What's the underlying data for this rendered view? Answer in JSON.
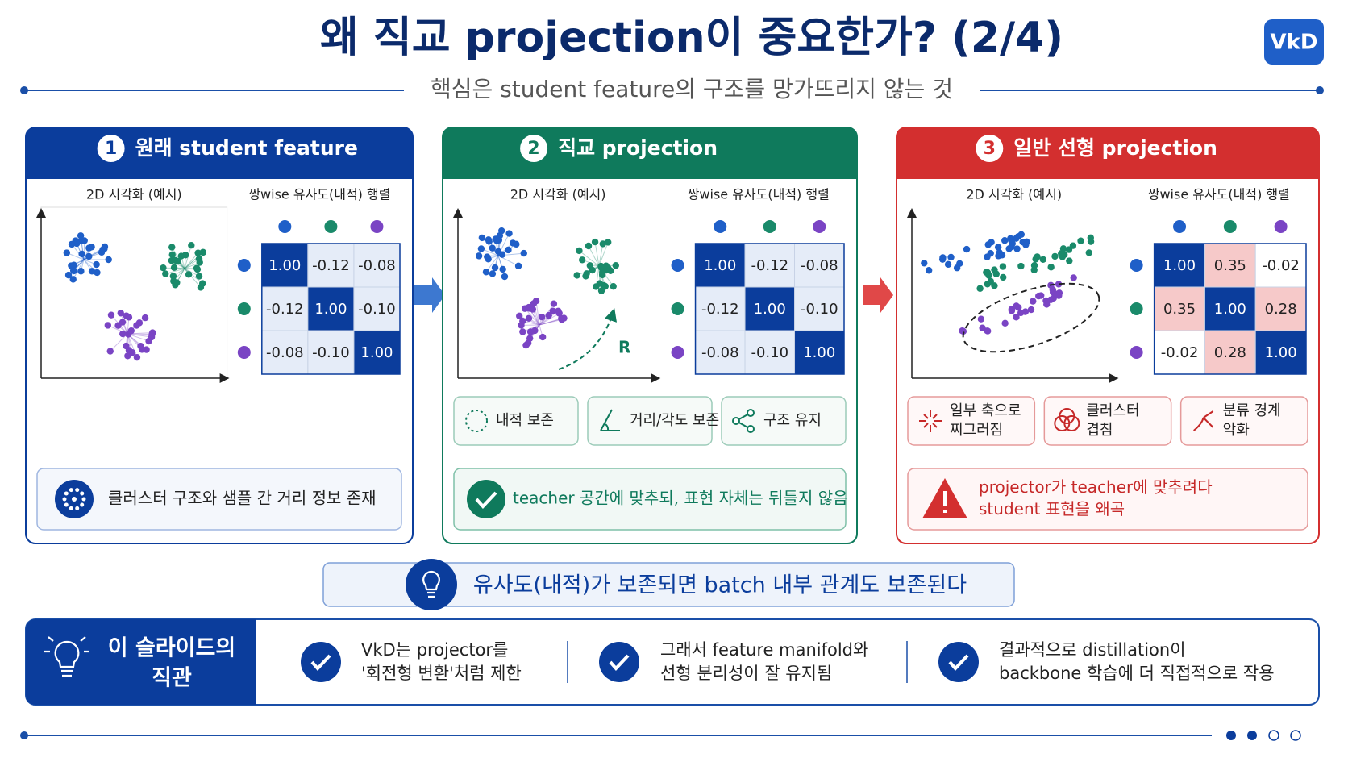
{
  "header": {
    "title": "왜 직교 projection이 중요한가? (2/4)",
    "badge": "VkD",
    "subtitle": "핵심은 student feature의 구조를 망가뜨리지 않는 것"
  },
  "panels": [
    {
      "number": "1",
      "title": "원래 student feature",
      "plot_label": "2D 시각화 (예시)",
      "matrix_label": "쌍wise 유사도(내적) 행렬",
      "matrix": [
        [
          "1.00",
          "-0.12",
          "-0.08"
        ],
        [
          "-0.12",
          "1.00",
          "-0.10"
        ],
        [
          "-0.08",
          "-0.10",
          "1.00"
        ]
      ],
      "note": [
        "클러스터 구조와 샘플 간 거리 정보 존재"
      ]
    },
    {
      "number": "2",
      "title": "직교 projection",
      "plot_label": "2D 시각화 (예시)",
      "matrix_label": "쌍wise 유사도(내적) 행렬",
      "rotation_label": "R",
      "matrix": [
        [
          "1.00",
          "-0.12",
          "-0.08"
        ],
        [
          "-0.12",
          "1.00",
          "-0.10"
        ],
        [
          "-0.08",
          "-0.10",
          "1.00"
        ]
      ],
      "features": [
        [
          "내적 보존"
        ],
        [
          "거리/각도 보존"
        ],
        [
          "구조 유지"
        ]
      ],
      "note": [
        "teacher 공간에 맞추되, 표현 자체는 뒤틀지 않음"
      ]
    },
    {
      "number": "3",
      "title": "일반 선형 projection",
      "plot_label": "2D 시각화 (예시)",
      "matrix_label": "쌍wise 유사도(내적) 행렬",
      "matrix": [
        [
          "1.00",
          "0.35",
          "-0.02"
        ],
        [
          "0.35",
          "1.00",
          "0.28"
        ],
        [
          "-0.02",
          "0.28",
          "1.00"
        ]
      ],
      "features": [
        [
          "일부 축으로",
          "찌그러짐"
        ],
        [
          "클러스터",
          "겹침"
        ],
        [
          "분류 경계",
          "악화"
        ]
      ],
      "note": [
        "projector가 teacher에 맞추려다",
        "student 표현을 왜곡"
      ]
    }
  ],
  "highlight": "유사도(내적)가 보존되면 batch 내부 관계도 보존된다",
  "summary": {
    "title": [
      "이 슬라이드의",
      "직관"
    ],
    "items": [
      [
        "VkD는 projector를",
        "'회전형 변환'처럼 제한"
      ],
      [
        "그래서 feature manifold와",
        "선형 분리성이 잘 유지됨"
      ],
      [
        "결과적으로 distillation이",
        "backbone 학습에 더 직접적으로 작용"
      ]
    ]
  }
}
